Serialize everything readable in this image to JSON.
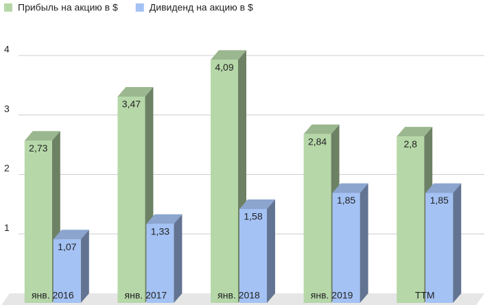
{
  "chart_data": {
    "type": "bar3d",
    "categories": [
      "янв. 2016",
      "янв. 2017",
      "янв. 2018",
      "янв. 2019",
      "TTM"
    ],
    "series": [
      {
        "name": "Прибыль на акцию в $",
        "color": "#b6d7a8",
        "values": [
          2.73,
          3.47,
          4.09,
          2.84,
          2.8
        ],
        "value_labels": [
          "2,73",
          "3,47",
          "4,09",
          "2,84",
          "2,8"
        ]
      },
      {
        "name": "Дивиденд на акцию в $",
        "color": "#a4c2f4",
        "values": [
          1.07,
          1.33,
          1.58,
          1.85,
          1.85
        ],
        "value_labels": [
          "1,07",
          "1,33",
          "1,58",
          "1,85",
          "1,85"
        ]
      }
    ],
    "ylim": [
      0,
      4.6
    ],
    "yticks": [
      1,
      2,
      3,
      4
    ],
    "grid": true,
    "legend": "top-left"
  }
}
